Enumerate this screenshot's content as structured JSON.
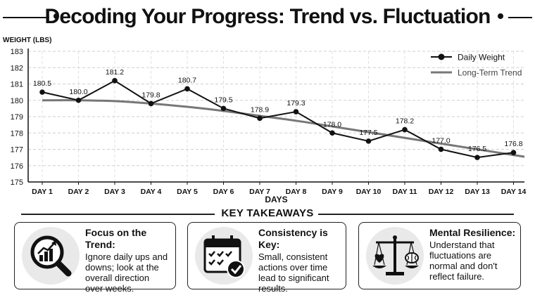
{
  "title": "Decoding Your Progress: Trend vs. Fluctuation",
  "chart_data": {
    "type": "line",
    "ylabel": "WEIGHT (LBS)",
    "xlabel": "DAYS",
    "ylim": [
      175,
      183
    ],
    "yticks": [
      175,
      176,
      177,
      178,
      179,
      180,
      181,
      182,
      183
    ],
    "grid": true,
    "legend_position": "top-right",
    "categories": [
      "DAY 1",
      "DAY 2",
      "DAY 3",
      "DAY 4",
      "DAY 5",
      "DAY 6",
      "DAY 7",
      "DAY 8",
      "DAY 9",
      "DAY 10",
      "DAY 11",
      "DAY 12",
      "DAY 13",
      "DAY 14"
    ],
    "series": [
      {
        "name": "Daily Weight",
        "values": [
          180.5,
          180.0,
          181.2,
          179.8,
          180.7,
          179.5,
          178.9,
          179.3,
          178.0,
          177.5,
          178.2,
          177.0,
          176.5,
          176.8
        ],
        "labels": [
          "180.5",
          "180.0",
          "181.2",
          "179.8",
          "180.7",
          "179.5",
          "178.9",
          "179.3",
          "178.0",
          "177.5",
          "178.2",
          "177.0",
          "176.5",
          "176.8"
        ],
        "color": "#111111"
      },
      {
        "name": "Long-Term Trend",
        "values": [
          180.0,
          180.0,
          179.95,
          179.8,
          179.6,
          179.35,
          179.05,
          178.75,
          178.4,
          178.05,
          177.7,
          177.35,
          177.0,
          176.65
        ],
        "color": "#777777"
      }
    ]
  },
  "takeaways": {
    "heading": "KEY TAKEAWAYS",
    "cards": [
      {
        "icon": "magnifier-chart-icon",
        "heading": "Focus on the Trend:",
        "lines": [
          "Ignore daily ups and",
          "downs; look at the",
          "overall direction",
          "over weeks."
        ]
      },
      {
        "icon": "calendar-check-icon",
        "heading": "Consistency is Key:",
        "lines": [
          "Small, consistent",
          "actions over time",
          "lead to significant",
          "results."
        ]
      },
      {
        "icon": "balance-scale-icon",
        "heading": "Mental Resilience:",
        "lines": [
          "Understand that",
          "fluctuations are",
          "normal and don't",
          "reflect failure."
        ]
      }
    ]
  }
}
